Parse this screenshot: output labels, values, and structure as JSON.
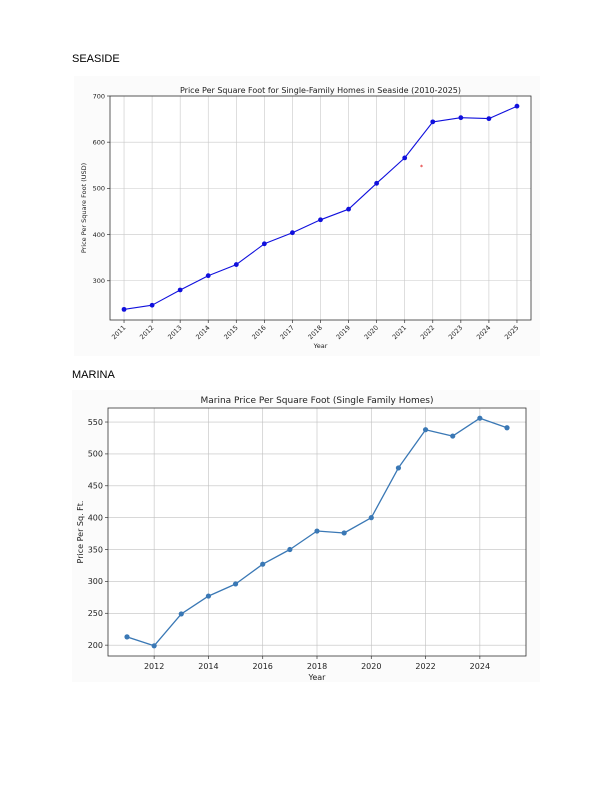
{
  "page": {
    "seaside_heading": "SEASIDE",
    "marina_heading": "MARINA"
  },
  "chart_data": [
    {
      "id": "seaside",
      "type": "line",
      "title": "Price Per Square Foot for Single-Family Homes in Seaside (2010-2025)",
      "xlabel": "Year",
      "ylabel": "Price Per Square Foot (USD)",
      "x": [
        2011,
        2012,
        2013,
        2014,
        2015,
        2016,
        2017,
        2018,
        2019,
        2020,
        2021,
        2022,
        2023,
        2024,
        2025
      ],
      "xticks": [
        "2011",
        "2012",
        "2013",
        "2014",
        "2015",
        "2016",
        "2017",
        "2018",
        "2019",
        "2020",
        "2021",
        "2022",
        "2023",
        "2024",
        "2025"
      ],
      "xlim": [
        2010.5,
        2025.5
      ],
      "series": [
        {
          "values": [
            238,
            247,
            280,
            311,
            335,
            380,
            404,
            432,
            455,
            511,
            566,
            644,
            653,
            651,
            678
          ],
          "color": "#1010dd"
        }
      ],
      "yticks": [
        300,
        400,
        500,
        600,
        700
      ],
      "ylim": [
        215,
        700
      ],
      "grid": true,
      "annotations": [
        {
          "text": "*",
          "x": 2021.6,
          "y": 548,
          "color": "#dd0000"
        }
      ]
    },
    {
      "id": "marina",
      "type": "line",
      "title": "Marina Price Per Square Foot (Single Family Homes)",
      "xlabel": "Year",
      "ylabel": "Price Per Sq. Ft.",
      "x": [
        2011,
        2012,
        2013,
        2014,
        2015,
        2016,
        2017,
        2018,
        2019,
        2020,
        2021,
        2022,
        2023,
        2024,
        2025
      ],
      "xticks": [
        "2012",
        "2014",
        "2016",
        "2018",
        "2020",
        "2022",
        "2024"
      ],
      "xlim": [
        2010.3,
        2025.7
      ],
      "series": [
        {
          "values": [
            213,
            199,
            249,
            277,
            296,
            327,
            350,
            379,
            376,
            400,
            478,
            538,
            528,
            556,
            541
          ],
          "color": "#3a78b5"
        }
      ],
      "yticks": [
        200,
        250,
        300,
        350,
        400,
        450,
        500,
        550
      ],
      "ylim": [
        183,
        572
      ],
      "grid": true
    }
  ]
}
